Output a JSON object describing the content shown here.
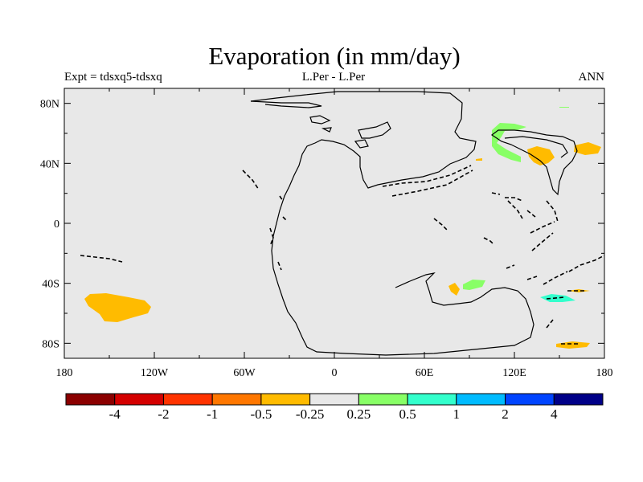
{
  "chart_data": {
    "type": "contour-map",
    "title": "Evaporation (in mm/day)",
    "left_subtitle": "Expt = tdsxq5-tdsxq",
    "center_subtitle": "L.Per - L.Per",
    "right_subtitle": "ANN",
    "x_ticks": [
      {
        "lon": -180,
        "label": "180"
      },
      {
        "lon": -120,
        "label": "120W"
      },
      {
        "lon": -60,
        "label": "60W"
      },
      {
        "lon": 0,
        "label": "0"
      },
      {
        "lon": 60,
        "label": "60E"
      },
      {
        "lon": 120,
        "label": "120E"
      },
      {
        "lon": 180,
        "label": "180"
      }
    ],
    "y_ticks": [
      {
        "lat": 80,
        "label": "80N"
      },
      {
        "lat": 40,
        "label": "40N"
      },
      {
        "lat": 0,
        "label": "0"
      },
      {
        "lat": -40,
        "label": "40S"
      },
      {
        "lat": -80,
        "label": "80S"
      }
    ],
    "xlim": [
      -180,
      180
    ],
    "ylim": [
      -90,
      90
    ],
    "background_color": "#e8e8e8",
    "colorbar": {
      "colors": [
        "#8b0000",
        "#d40000",
        "#ff3300",
        "#ff7700",
        "#ffbb00",
        "#e8e8e8",
        "#88ff66",
        "#33ffcc",
        "#00bbff",
        "#0044ff",
        "#000088"
      ],
      "levels": [
        "-4",
        "-2",
        "-1",
        "-0.5",
        "-0.25",
        "0.25",
        "0.5",
        "1",
        "2",
        "4"
      ]
    }
  }
}
